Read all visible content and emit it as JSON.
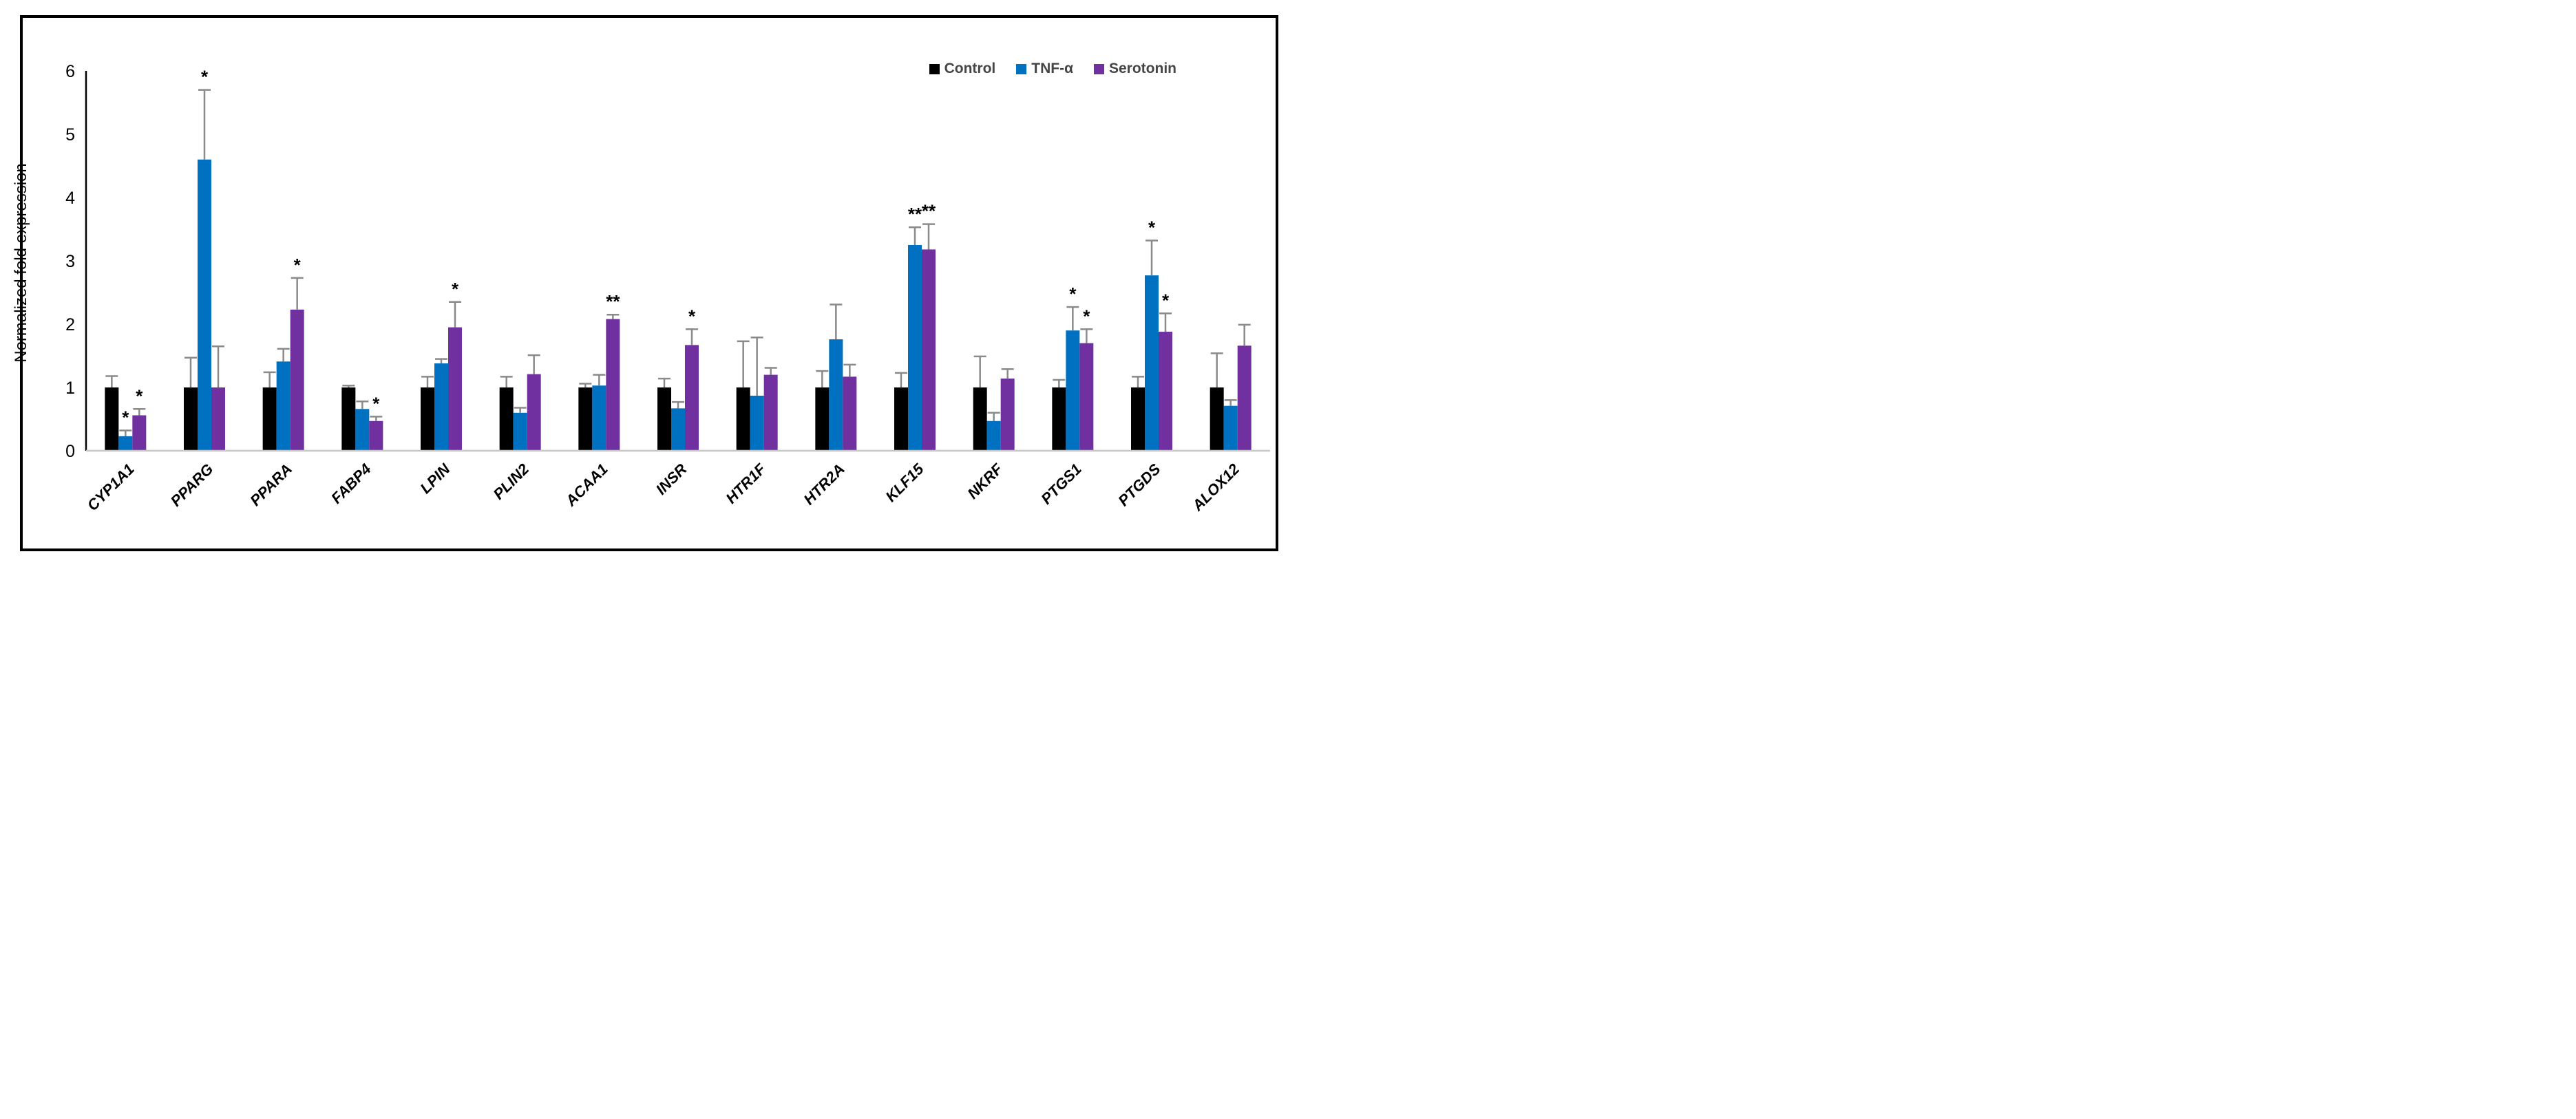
{
  "figure": {
    "background_color": "#ffffff",
    "border_color": "#000000",
    "axis_line_color": "#000000",
    "baseline_color": "#c6c6c6",
    "error_bar_color": "#8a8a8a",
    "legend_text_color": "#454545"
  },
  "chart_data": {
    "type": "bar",
    "title": "",
    "xlabel": "",
    "ylabel": "Normalized fold expression",
    "ylim": [
      0,
      6
    ],
    "yticks": [
      0,
      1,
      2,
      3,
      4,
      5,
      6
    ],
    "grid": false,
    "legend_position": "top-right",
    "error_bars": true,
    "significance_markers": true,
    "categories": [
      "CYP1A1",
      "PPARG",
      "PPARA",
      "FABP4",
      "LPIN",
      "PLIN2",
      "ACAA1",
      "INSR",
      "HTR1F",
      "HTR2A",
      "KLF15",
      "NKRF",
      "PTGS1",
      "PTGDS",
      "ALOX12"
    ],
    "series": [
      {
        "name": "Control",
        "color": "#000000",
        "values": [
          1.0,
          1.0,
          1.0,
          1.0,
          1.0,
          1.0,
          1.0,
          1.0,
          1.0,
          1.0,
          1.0,
          1.0,
          1.0,
          1.0,
          1.0
        ],
        "errors": [
          0.18,
          0.47,
          0.24,
          0.03,
          0.17,
          0.17,
          0.06,
          0.14,
          0.73,
          0.26,
          0.23,
          0.49,
          0.12,
          0.17,
          0.54
        ],
        "sig": [
          "",
          "",
          "",
          "",
          "",
          "",
          "",
          "",
          "",
          "",
          "",
          "",
          "",
          "",
          ""
        ]
      },
      {
        "name": "TNF-α",
        "color": "#0070C0",
        "values": [
          0.23,
          4.6,
          1.41,
          0.66,
          1.38,
          0.6,
          1.03,
          0.67,
          0.87,
          1.76,
          3.25,
          0.47,
          1.9,
          2.77,
          0.71
        ],
        "errors": [
          0.09,
          1.1,
          0.2,
          0.12,
          0.07,
          0.08,
          0.17,
          0.1,
          0.92,
          0.55,
          0.28,
          0.13,
          0.37,
          0.55,
          0.09
        ],
        "sig": [
          "*",
          "*",
          "",
          "",
          "",
          "",
          "",
          "",
          "",
          "",
          "**",
          "",
          "*",
          "*",
          ""
        ]
      },
      {
        "name": "Serotonin",
        "color": "#7030A0",
        "values": [
          0.56,
          1.0,
          2.23,
          0.47,
          1.95,
          1.21,
          2.08,
          1.67,
          1.2,
          1.17,
          3.18,
          1.14,
          1.7,
          1.88,
          1.66
        ],
        "errors": [
          0.1,
          0.65,
          0.5,
          0.07,
          0.4,
          0.3,
          0.07,
          0.25,
          0.11,
          0.19,
          0.4,
          0.15,
          0.22,
          0.29,
          0.33
        ],
        "sig": [
          "*",
          "",
          "*",
          "*",
          "*",
          "",
          "**",
          "*",
          "",
          "",
          "**",
          "",
          "*",
          "*",
          ""
        ]
      }
    ]
  }
}
